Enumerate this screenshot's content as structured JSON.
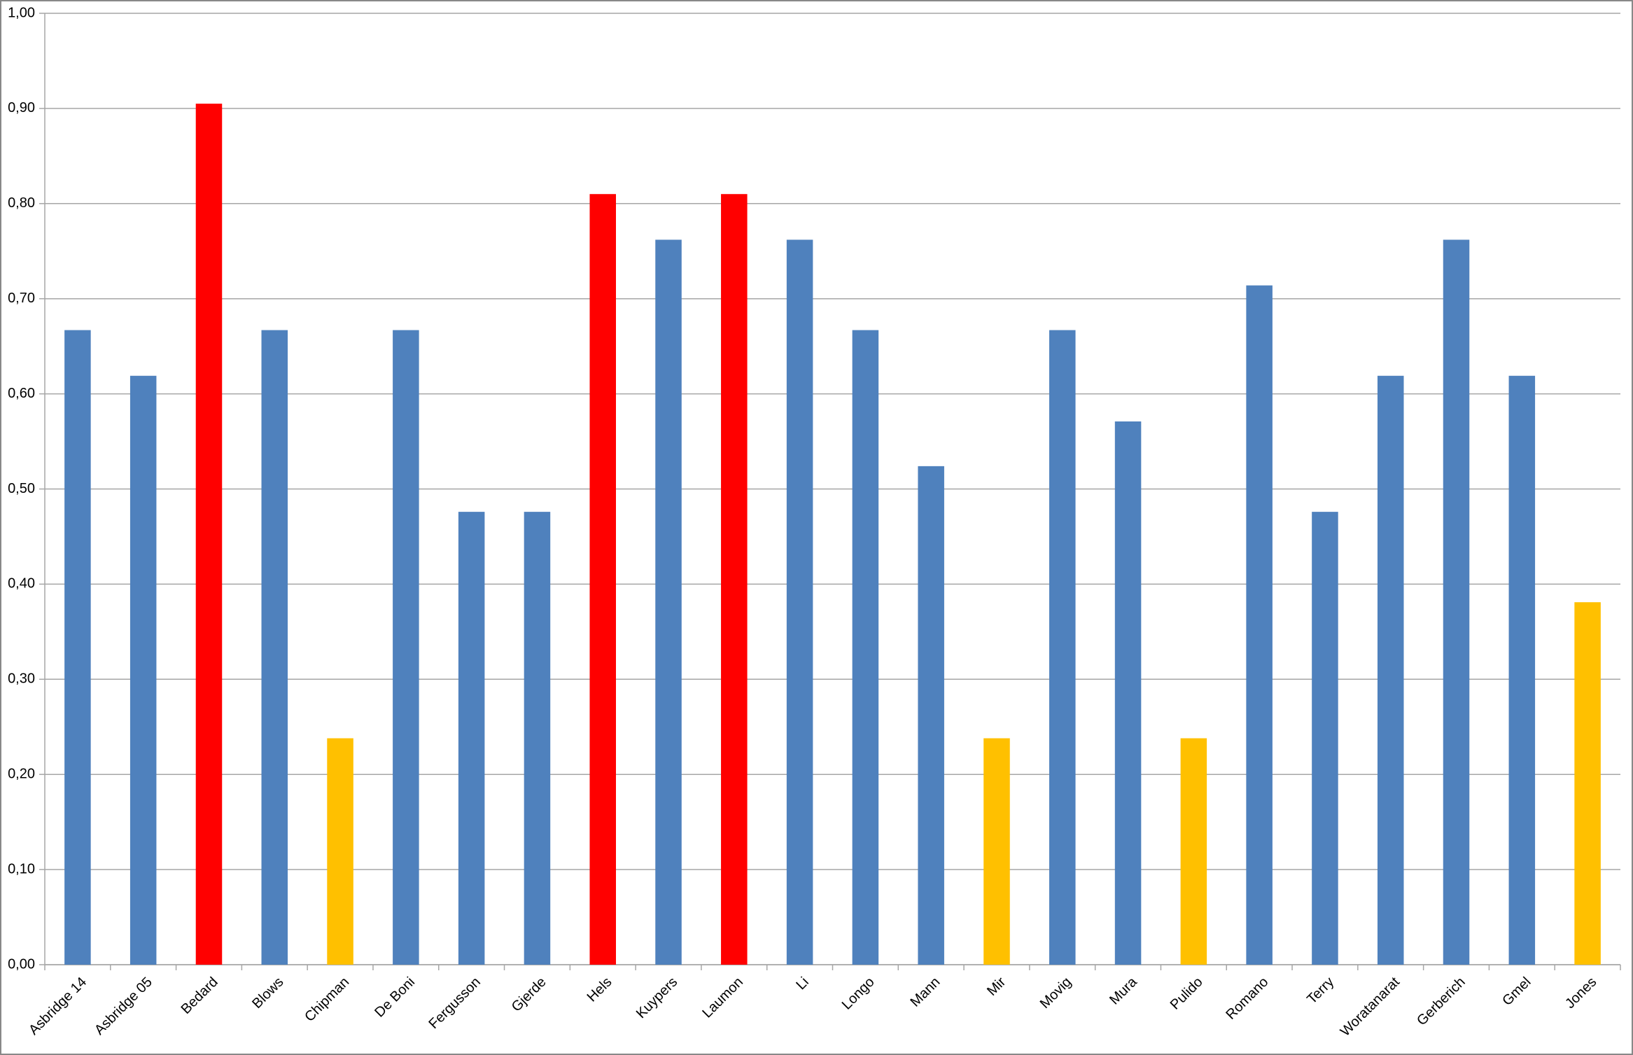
{
  "chart_data": {
    "type": "bar",
    "categories": [
      "Asbridge 14",
      "Asbridge 05",
      "Bedard",
      "Blows",
      "Chipman",
      "De Boni",
      "Fergusson",
      "Gjerde",
      "Hels",
      "Kuypers",
      "Laumon",
      "Li",
      "Longo",
      "Mann",
      "Mir",
      "Movig",
      "Mura",
      "Pulido",
      "Romano",
      "Terry",
      "Woratanarat",
      "Gerberich",
      "Gmel",
      "Jones"
    ],
    "values": [
      0.667,
      0.619,
      0.905,
      0.667,
      0.238,
      0.667,
      0.476,
      0.476,
      0.81,
      0.762,
      0.81,
      0.762,
      0.667,
      0.524,
      0.238,
      0.667,
      0.571,
      0.238,
      0.714,
      0.476,
      0.619,
      0.762,
      0.619,
      0.381
    ],
    "colors": [
      "#4f81bd",
      "#4f81bd",
      "#ff0000",
      "#4f81bd",
      "#ffc000",
      "#4f81bd",
      "#4f81bd",
      "#4f81bd",
      "#ff0000",
      "#4f81bd",
      "#ff0000",
      "#4f81bd",
      "#4f81bd",
      "#4f81bd",
      "#ffc000",
      "#4f81bd",
      "#4f81bd",
      "#ffc000",
      "#4f81bd",
      "#4f81bd",
      "#4f81bd",
      "#4f81bd",
      "#4f81bd",
      "#ffc000"
    ],
    "ylim": [
      0,
      1
    ],
    "yticks": [
      {
        "value": 0,
        "label": "0,00"
      },
      {
        "value": 0.1,
        "label": "0,10"
      },
      {
        "value": 0.2,
        "label": "0,20"
      },
      {
        "value": 0.3,
        "label": "0,30"
      },
      {
        "value": 0.4,
        "label": "0,40"
      },
      {
        "value": 0.5,
        "label": "0,50"
      },
      {
        "value": 0.6,
        "label": "0,60"
      },
      {
        "value": 0.7,
        "label": "0,70"
      },
      {
        "value": 0.8,
        "label": "0,80"
      },
      {
        "value": 0.9,
        "label": "0,90"
      },
      {
        "value": 1,
        "label": "1,00"
      }
    ],
    "grid": true
  }
}
